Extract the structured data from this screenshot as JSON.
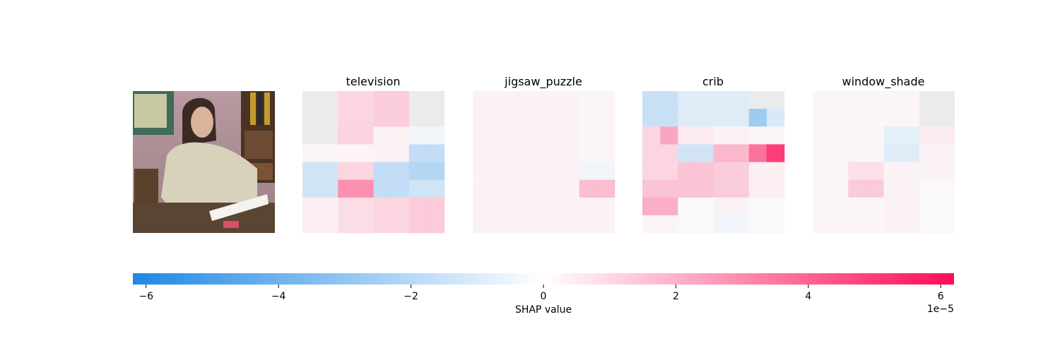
{
  "chart_data": {
    "type": "heatmap",
    "description_panels": [
      {
        "title": ""
      },
      {
        "title": "television"
      },
      {
        "title": "jigsaw_puzzle"
      },
      {
        "title": "crib"
      },
      {
        "title": "window_shade"
      }
    ],
    "grid_rows": 8,
    "grid_cols": 8,
    "panels": [
      {
        "name": "television",
        "values": [
          [
            0,
            0,
            1.2,
            1.2,
            1.5,
            1.5,
            0,
            0
          ],
          [
            0,
            0,
            1.2,
            1.2,
            1.5,
            1.5,
            0,
            0
          ],
          [
            0,
            0,
            1.3,
            1.3,
            0.3,
            0.3,
            -0.3,
            -0.3
          ],
          [
            0.2,
            0.2,
            0.2,
            0.2,
            0.3,
            0.3,
            -2.0,
            -2.0
          ],
          [
            -1.5,
            -1.5,
            1.2,
            1.2,
            -2.0,
            -2.0,
            -2.5,
            -2.5
          ],
          [
            -1.5,
            -1.5,
            3.5,
            3.5,
            -2.0,
            -2.0,
            -1.5,
            -1.5
          ],
          [
            0.4,
            0.4,
            1.0,
            1.0,
            1.2,
            1.2,
            1.6,
            1.6
          ],
          [
            0.4,
            0.4,
            1.0,
            1.0,
            1.2,
            1.2,
            1.6,
            1.6
          ]
        ]
      },
      {
        "name": "jigsaw_puzzle",
        "values": [
          [
            0.3,
            0.3,
            0.3,
            0.3,
            0.3,
            0.3,
            0.2,
            0.2
          ],
          [
            0.3,
            0.3,
            0.3,
            0.3,
            0.3,
            0.3,
            0.2,
            0.2
          ],
          [
            0.3,
            0.3,
            0.3,
            0.3,
            0.3,
            0.3,
            0.2,
            0.2
          ],
          [
            0.3,
            0.3,
            0.3,
            0.3,
            0.3,
            0.3,
            0.2,
            0.2
          ],
          [
            0.3,
            0.3,
            0.3,
            0.3,
            0.3,
            0.3,
            -0.4,
            -0.4
          ],
          [
            0.3,
            0.3,
            0.3,
            0.3,
            0.3,
            0.3,
            2.0,
            2.0
          ],
          [
            0.3,
            0.3,
            0.3,
            0.3,
            0.3,
            0.3,
            0.3,
            0.3
          ],
          [
            0.3,
            0.3,
            0.3,
            0.3,
            0.3,
            0.3,
            0.3,
            0.3
          ]
        ]
      },
      {
        "name": "crib",
        "values": [
          [
            -1.8,
            -1.8,
            -1.0,
            -1.0,
            -1.0,
            -1.0,
            0,
            0
          ],
          [
            -1.8,
            -1.8,
            -1.0,
            -1.0,
            -1.0,
            -1.0,
            -3.2,
            -1.2
          ],
          [
            1.2,
            2.8,
            0.5,
            0.5,
            0.3,
            0.3,
            0.2,
            0.2
          ],
          [
            1.2,
            1.2,
            -1.5,
            -1.5,
            2.2,
            2.2,
            4.5,
            6.2
          ],
          [
            1.2,
            1.2,
            1.8,
            1.8,
            1.5,
            1.5,
            0.4,
            0.4
          ],
          [
            1.8,
            1.8,
            1.8,
            1.8,
            1.5,
            1.5,
            0.4,
            0.4
          ],
          [
            2.5,
            2.5,
            0.1,
            0.1,
            0.3,
            0.3,
            0.1,
            0.1
          ],
          [
            0.2,
            0.2,
            0.1,
            0.1,
            -0.3,
            -0.3,
            0.1,
            0.1
          ]
        ]
      },
      {
        "name": "window_shade",
        "values": [
          [
            0.2,
            0.2,
            0.2,
            0.2,
            0.2,
            0.2,
            0,
            0
          ],
          [
            0.2,
            0.2,
            0.2,
            0.2,
            0.2,
            0.2,
            0,
            0
          ],
          [
            0.2,
            0.2,
            0.2,
            0.2,
            -0.8,
            -0.8,
            0.5,
            0.5
          ],
          [
            0.2,
            0.2,
            0.2,
            0.2,
            -1.0,
            -1.0,
            0.3,
            0.3
          ],
          [
            0.2,
            0.2,
            0.9,
            0.9,
            0.3,
            0.3,
            0.3,
            0.3
          ],
          [
            0.2,
            0.2,
            1.6,
            1.6,
            0.3,
            0.3,
            0.1,
            0.1
          ],
          [
            0.2,
            0.2,
            0.2,
            0.2,
            0.3,
            0.3,
            0.1,
            0.1
          ],
          [
            0.2,
            0.2,
            0.2,
            0.2,
            0.3,
            0.3,
            0.1,
            0.1
          ]
        ]
      }
    ],
    "value_unit_scale": 1e-05,
    "colorbar": {
      "label": "SHAP value",
      "range": [
        -6.2,
        6.2
      ],
      "ticks": [
        -6,
        -4,
        -2,
        0,
        2,
        4,
        6
      ],
      "tick_labels": [
        "−6",
        "−4",
        "−2",
        "0",
        "2",
        "4",
        "6"
      ],
      "offset_label": "1e−5",
      "negative_color": "#1e88e5",
      "positive_color": "#ff0d57"
    }
  }
}
